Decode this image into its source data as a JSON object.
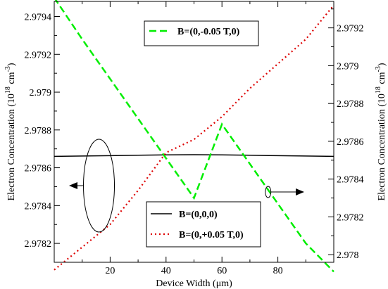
{
  "chart_data": {
    "type": "line",
    "xlabel": "Device Width (μm)",
    "ylabel_left": "Electron Concentration (10^18 cm^-3)",
    "ylabel_right": "Electron Concentration (10^18 cm^-3)",
    "ylabel_parts": {
      "prefix": "Electron Concentration (10",
      "exp1": "18",
      "middle": " cm",
      "exp2": "-3",
      "suffix": ")"
    },
    "xlim": [
      0,
      100
    ],
    "ylim_left": [
      2.9781,
      2.97948
    ],
    "ylim_right": [
      2.97796,
      2.97934
    ],
    "x_ticks": [
      20,
      40,
      60,
      80
    ],
    "y_ticks_left": [
      2.9782,
      2.9784,
      2.9786,
      2.9788,
      2.979,
      2.9792,
      2.9794
    ],
    "y_ticks_right": [
      2.978,
      2.9782,
      2.9784,
      2.9786,
      2.9788,
      2.979,
      2.9792
    ],
    "grid": false,
    "series": [
      {
        "name": "B=(0,0,0)",
        "axis": "left",
        "color": "#000000",
        "style": "solid",
        "x": [
          0,
          10,
          20,
          30,
          40,
          50,
          60,
          70,
          80,
          90,
          100
        ],
        "y": [
          2.97866,
          2.978662,
          2.978664,
          2.978666,
          2.978668,
          2.978669,
          2.978668,
          2.978666,
          2.978664,
          2.978662,
          2.97866
        ]
      },
      {
        "name": "B=(0,-0.05 T,0)",
        "axis": "right",
        "color": "#00ee00",
        "style": "dashed",
        "x": [
          0,
          10,
          20,
          30,
          40,
          50,
          60,
          70,
          80,
          90,
          100
        ],
        "y": [
          2.97936,
          2.97914,
          2.97893,
          2.97872,
          2.97851,
          2.9783,
          2.97869,
          2.97848,
          2.97827,
          2.97806,
          2.97791
        ]
      },
      {
        "name": "B=(0,+0.05 T,0)",
        "axis": "left",
        "color": "#dd0000",
        "style": "dotted",
        "x": [
          0,
          10,
          20,
          30,
          40,
          50,
          60,
          70,
          80,
          90,
          100
        ],
        "y": [
          2.97806,
          2.97818,
          2.9783,
          2.97848,
          2.97868,
          2.97875,
          2.97887,
          2.97902,
          2.97915,
          2.97928,
          2.97946
        ]
      }
    ],
    "legends": [
      {
        "position": "top-right",
        "entries": [
          "B=(0,-0.05 T,0)"
        ]
      },
      {
        "position": "bottom-right",
        "entries": [
          "B=(0,0,0)",
          "B=(0,+0.05 T,0)"
        ]
      }
    ],
    "annotations": [
      {
        "type": "ellipse-arrow",
        "points_to": "left axis",
        "x": 16
      },
      {
        "type": "ellipse-arrow",
        "points_to": "right axis",
        "x": 76.5
      }
    ]
  }
}
